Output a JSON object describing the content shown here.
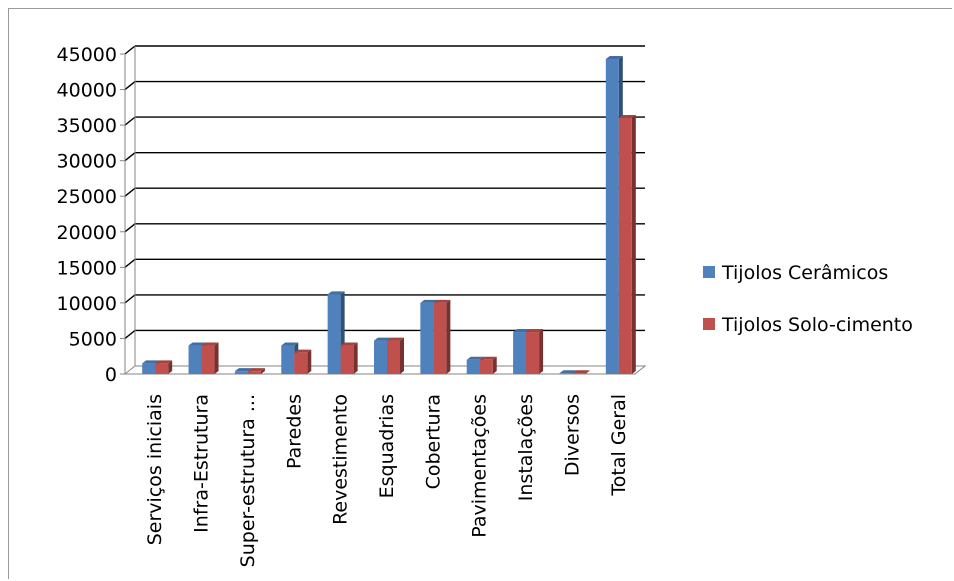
{
  "chart_data": {
    "type": "bar",
    "title": "",
    "xlabel": "",
    "ylabel": "",
    "ylim": [
      0,
      45000
    ],
    "yticks": [
      0,
      5000,
      10000,
      15000,
      20000,
      25000,
      30000,
      35000,
      40000,
      45000
    ],
    "grid": true,
    "legend_position": "right",
    "categories": [
      "Serviços iniciais",
      "Infra-Estrutura",
      "Super-estrutura ...",
      "Paredes",
      "Revestimento",
      "Esquadrias",
      "Cobertura",
      "Pavimentações",
      "Instalações",
      "Diversos",
      "Total Geral"
    ],
    "series": [
      {
        "name": "Tijolos Cerâmicos",
        "color": "#4f81bd",
        "values": [
          1500,
          4000,
          400,
          4000,
          11200,
          4700,
          10000,
          2000,
          5900,
          100,
          44300
        ]
      },
      {
        "name": "Tijolos Solo-cimento",
        "color": "#c0504d",
        "values": [
          1500,
          4000,
          400,
          3000,
          4000,
          4700,
          10000,
          2000,
          5900,
          100,
          36000
        ]
      }
    ]
  }
}
